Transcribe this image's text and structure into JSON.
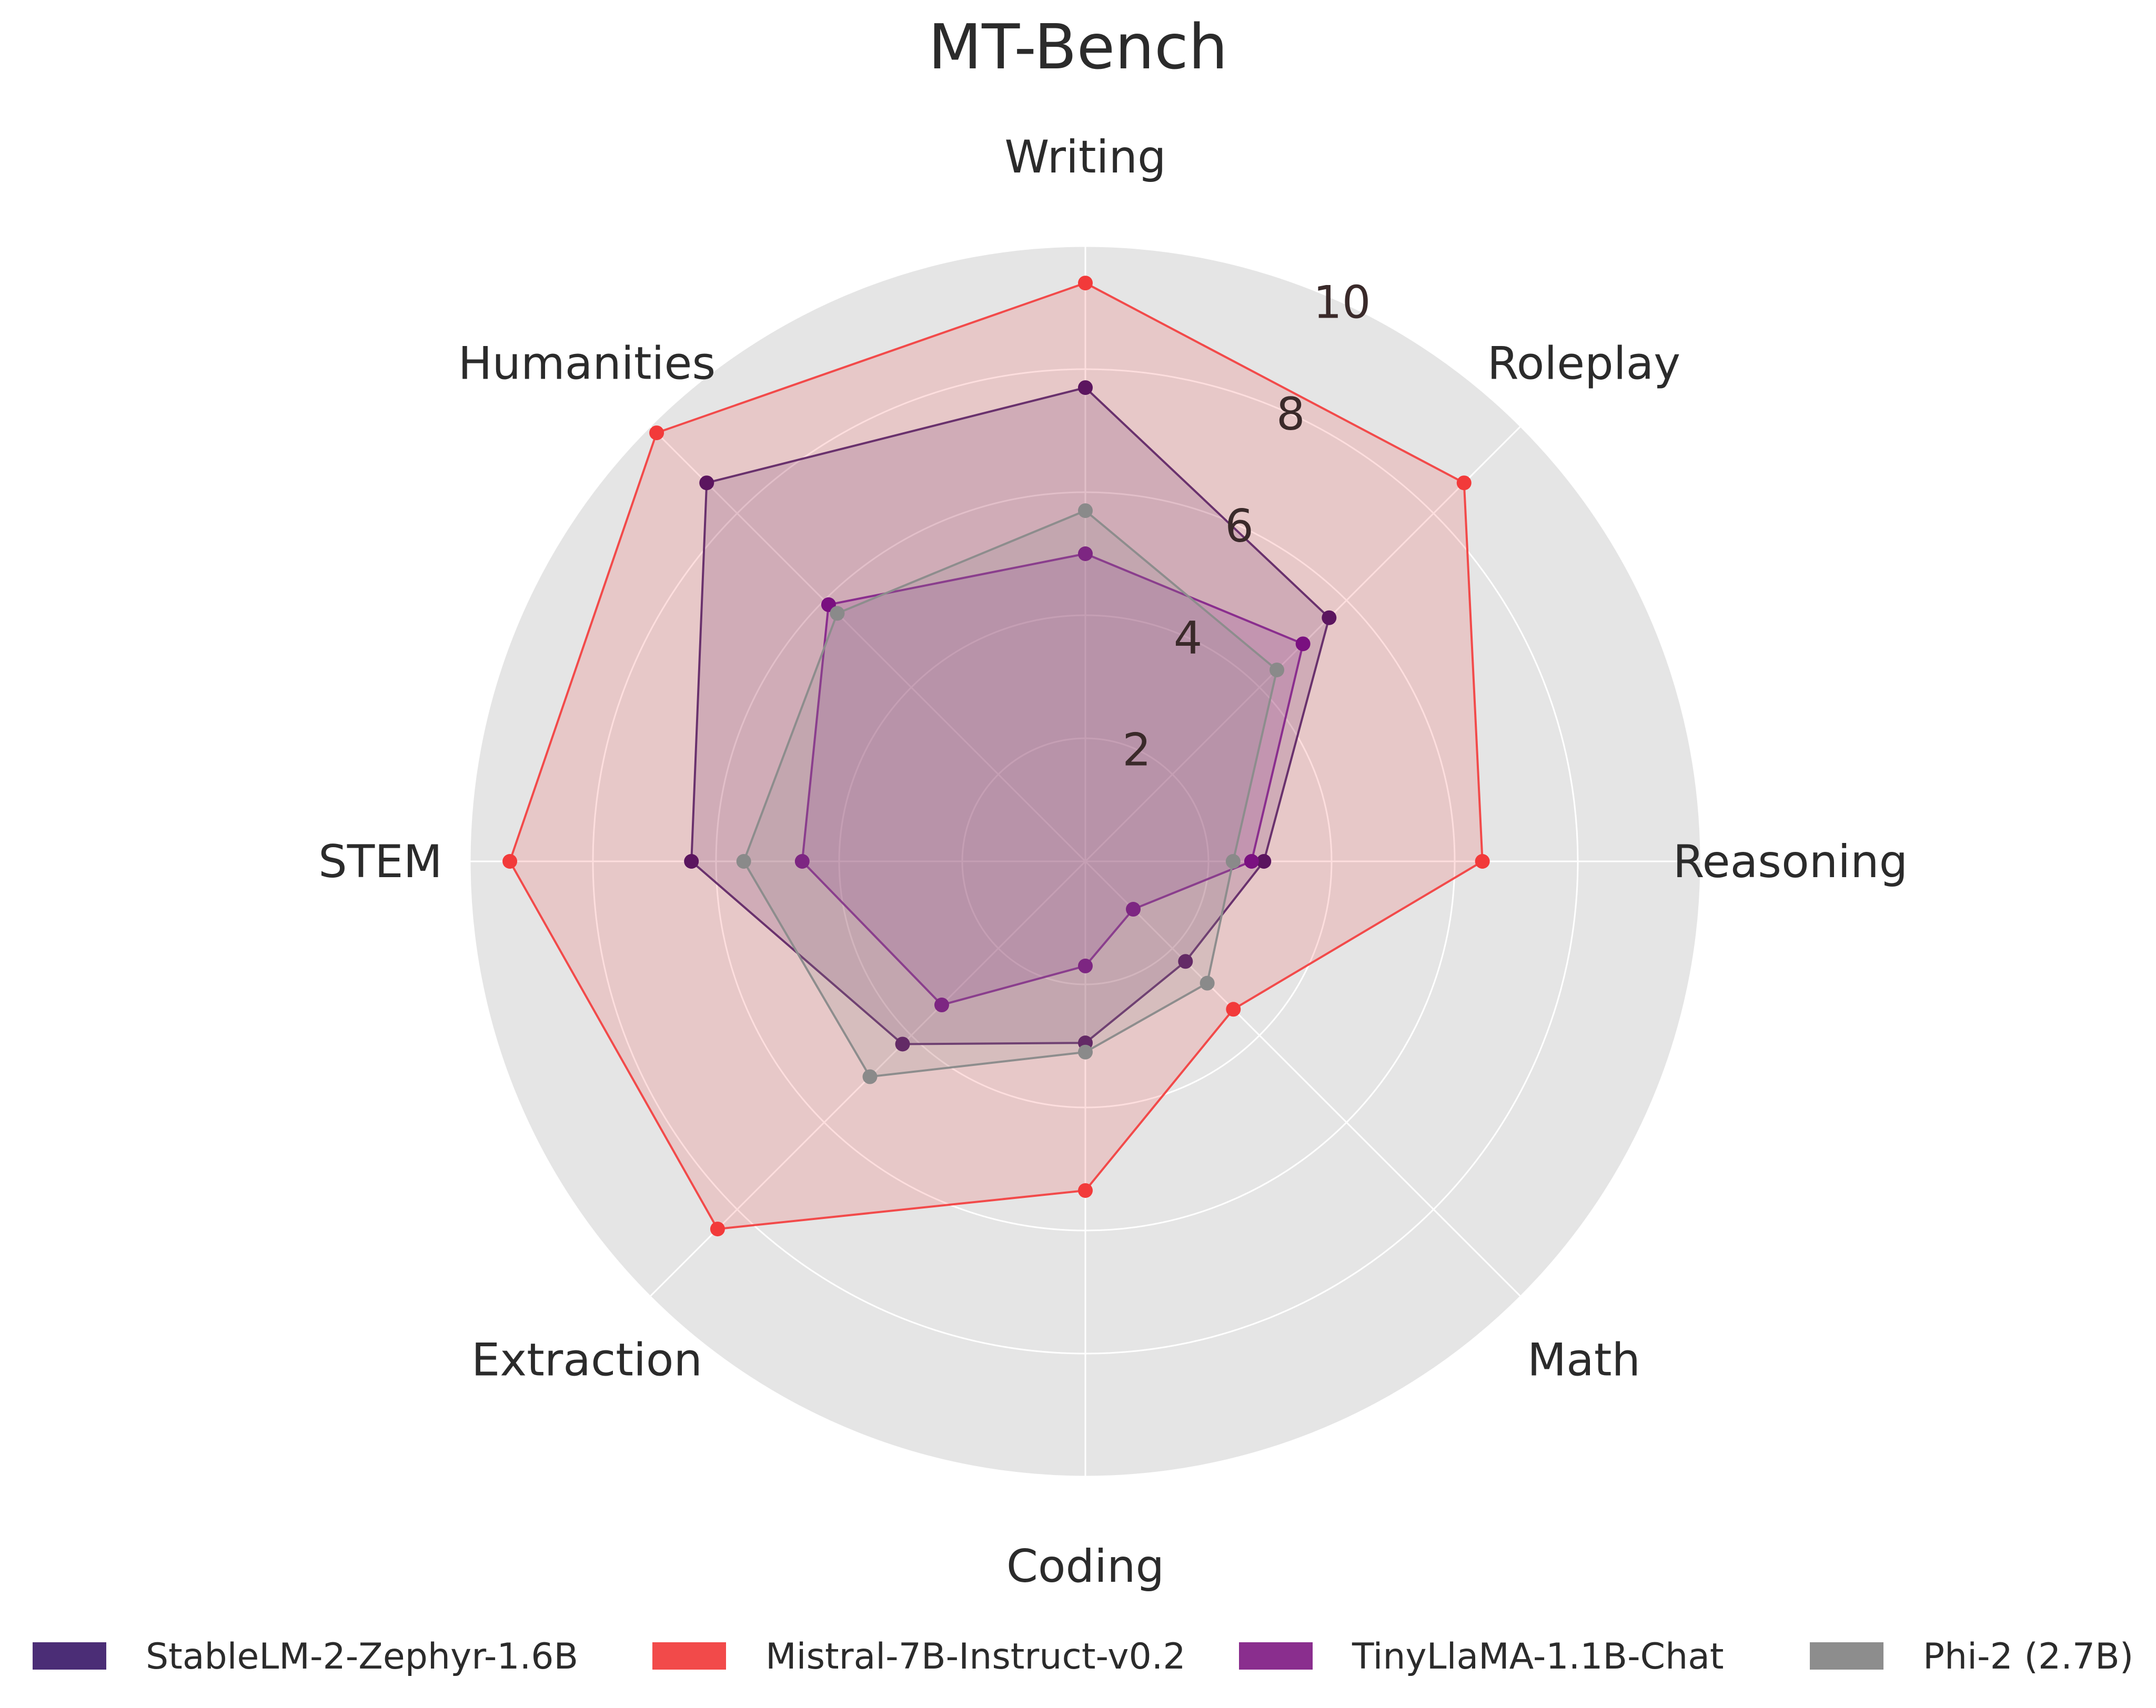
{
  "chart_data": {
    "type": "radar",
    "title": "MT-Bench",
    "categories": [
      "Writing",
      "Roleplay",
      "Reasoning",
      "Math",
      "Coding",
      "Extraction",
      "STEM",
      "Humanities"
    ],
    "rlim": [
      0,
      10
    ],
    "rticks": [
      2,
      4,
      6,
      8,
      10
    ],
    "grid": true,
    "legend_position": "bottom",
    "series": [
      {
        "name": "StableLM-2-Zephyr-1.6B",
        "color": "#4b2d76",
        "marker_color": "#3a0a64",
        "values": [
          7.7,
          5.6,
          2.9,
          2.3,
          2.95,
          4.2,
          6.4,
          8.7
        ]
      },
      {
        "name": "Mistral-7B-Instruct-v0.2",
        "color": "#f24a4a",
        "marker_color": "#f23a3a",
        "values": [
          9.4,
          8.7,
          6.45,
          3.4,
          5.35,
          8.45,
          9.35,
          9.85
        ]
      },
      {
        "name": "TinyLlaMA-1.1B-Chat",
        "color": "#8a2e8e",
        "marker_color": "#7a1080",
        "values": [
          5.0,
          5.0,
          2.7,
          1.1,
          1.7,
          3.3,
          4.6,
          5.9
        ]
      },
      {
        "name": "Phi-2 (2.7B)",
        "color": "#8d8d8d",
        "marker_color": "#8a8a8a",
        "values": [
          5.7,
          4.4,
          2.4,
          2.8,
          3.1,
          4.95,
          5.55,
          5.7
        ]
      }
    ]
  }
}
